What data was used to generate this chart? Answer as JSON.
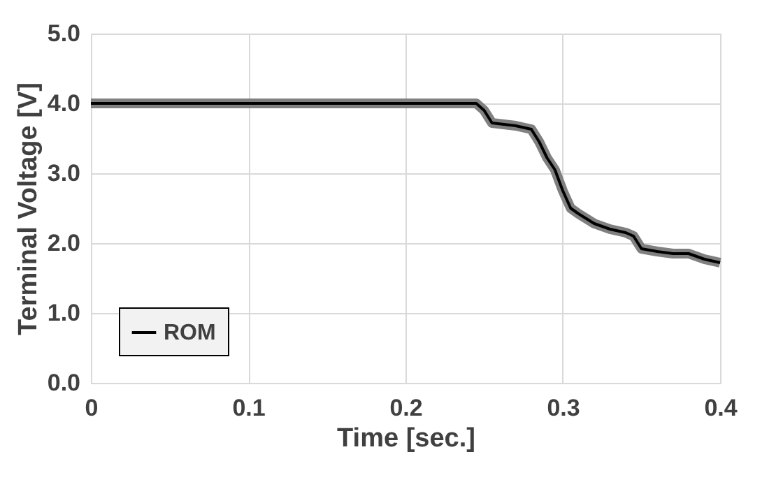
{
  "chart_data": {
    "type": "line",
    "xlabel": "Time [sec.]",
    "ylabel": "Terminal Voltage [V]",
    "x": [
      0,
      0.1,
      0.2,
      0.245,
      0.25,
      0.255,
      0.27,
      0.28,
      0.285,
      0.29,
      0.295,
      0.3,
      0.305,
      0.31,
      0.32,
      0.33,
      0.34,
      0.345,
      0.35,
      0.36,
      0.37,
      0.38,
      0.39,
      0.4
    ],
    "series": [
      {
        "color": "#808080",
        "values": [
          4.0,
          4.0,
          4.0,
          4.0,
          3.9,
          3.72,
          3.68,
          3.63,
          3.45,
          3.22,
          3.05,
          2.75,
          2.5,
          2.42,
          2.28,
          2.2,
          2.15,
          2.1,
          1.92,
          1.88,
          1.85,
          1.85,
          1.77,
          1.72
        ]
      },
      {
        "name": "ROM",
        "color": "#000000",
        "values": [
          4.0,
          4.0,
          4.0,
          4.0,
          3.9,
          3.72,
          3.68,
          3.63,
          3.45,
          3.22,
          3.05,
          2.75,
          2.5,
          2.42,
          2.28,
          2.2,
          2.15,
          2.1,
          1.92,
          1.88,
          1.85,
          1.85,
          1.77,
          1.72
        ]
      }
    ],
    "xlim": [
      0,
      0.4
    ],
    "xticks": [
      0,
      0.1,
      0.2,
      0.3,
      0.4
    ],
    "ylim": [
      0,
      5
    ],
    "yticks": [
      {
        "value": 0,
        "label": "0.0"
      },
      {
        "value": 1,
        "label": "1.0"
      },
      {
        "value": 2,
        "label": "2.0"
      },
      {
        "value": 3,
        "label": "3.0"
      },
      {
        "value": 4,
        "label": "4.0"
      },
      {
        "value": 5,
        "label": "5.0"
      }
    ],
    "grid": true,
    "legend": "bottom left",
    "line_style": "solid",
    "marker": "none"
  }
}
